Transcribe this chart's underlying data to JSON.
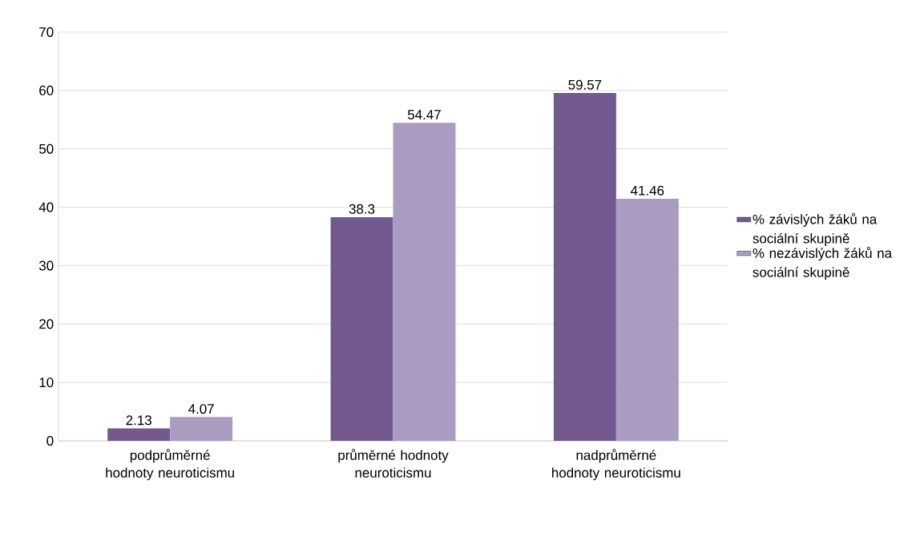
{
  "chart_data": {
    "type": "bar",
    "categories": [
      "podprůměrné hodnoty neuroticismu",
      "průměrné hodnoty neuroticismu",
      "nadprůměrné hodnoty neuroticismu"
    ],
    "series": [
      {
        "name": "% závislých žáků na sociální skupině",
        "color": "#725990",
        "values": [
          2.13,
          38.3,
          59.57
        ]
      },
      {
        "name": "% nezávislých žáků na sociální skupině",
        "color": "#a99cc0",
        "values": [
          4.07,
          54.47,
          41.46
        ]
      }
    ],
    "ylim": [
      0,
      70
    ],
    "yticks": [
      0,
      10,
      20,
      30,
      40,
      50,
      60,
      70
    ],
    "grid": "y",
    "legend": "right",
    "data_labels": true
  }
}
